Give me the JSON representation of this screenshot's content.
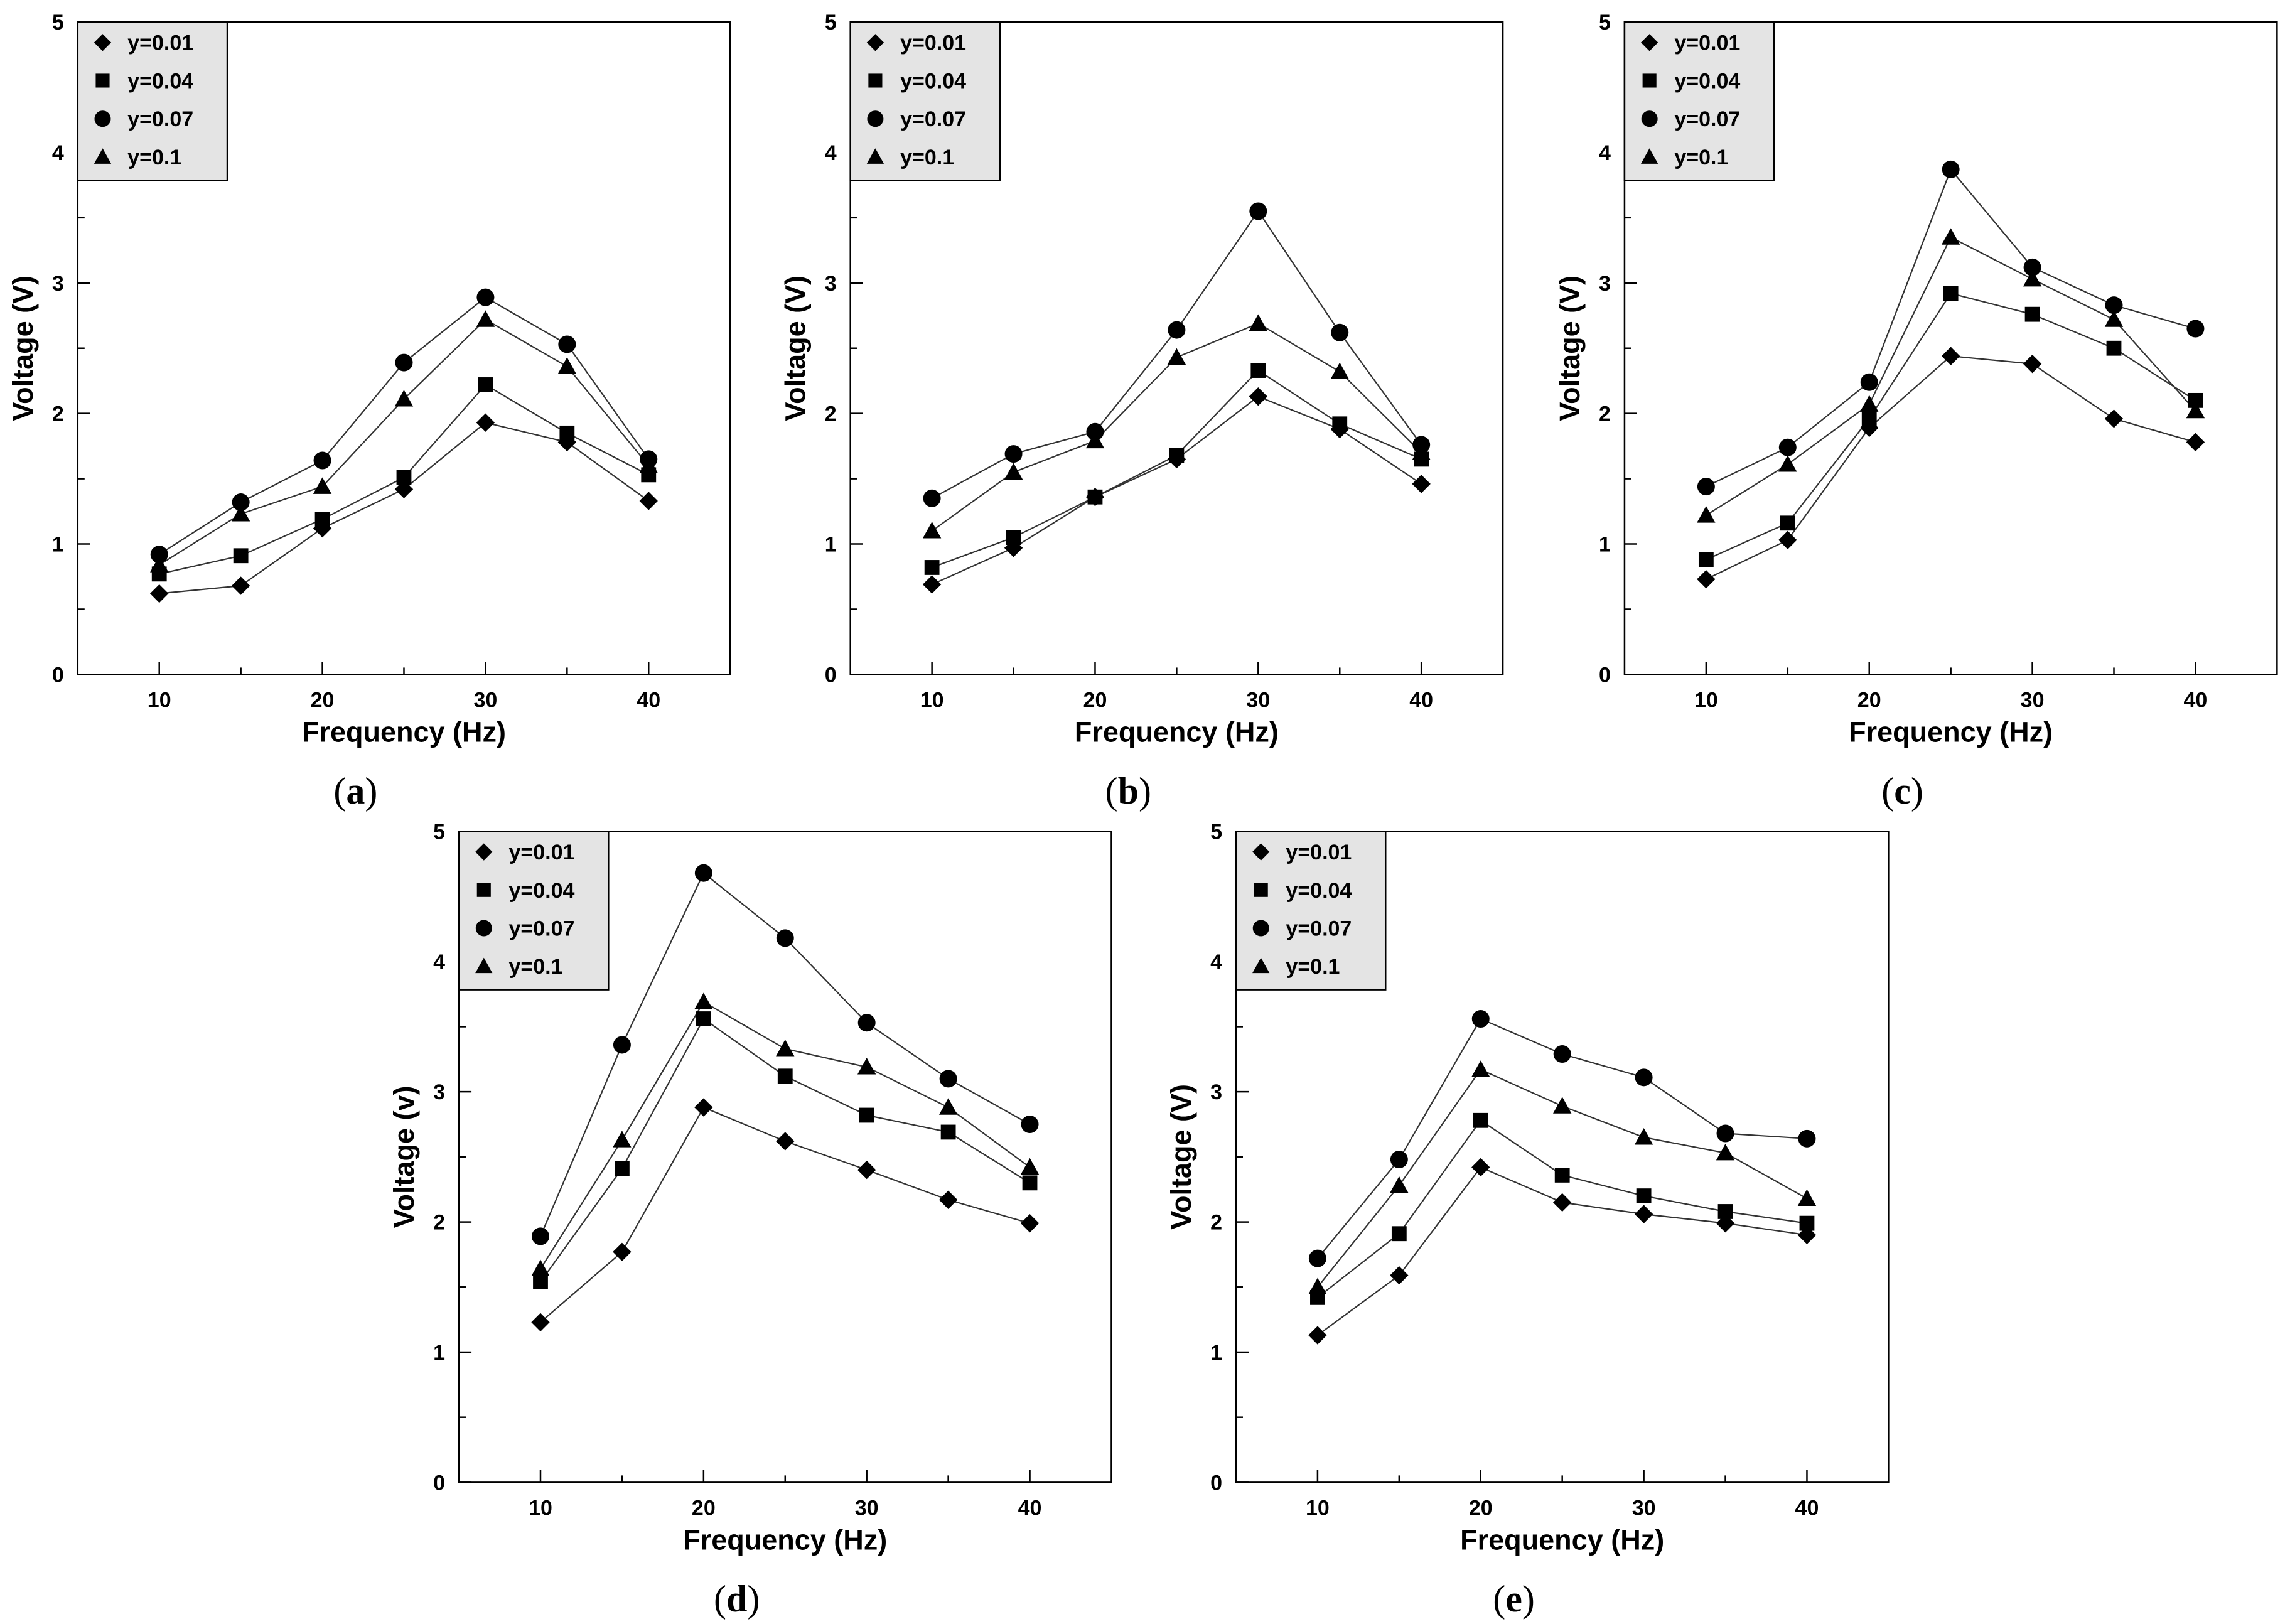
{
  "chart_data": [
    {
      "type": "line",
      "caption_letter": "a",
      "xlabel": "Frequency (Hz)",
      "ylabel": "Voltage (V)",
      "x": [
        10,
        15,
        20,
        25,
        30,
        35,
        40
      ],
      "xticks": [
        10,
        20,
        30,
        40
      ],
      "xlim": [
        5,
        45
      ],
      "yticks": [
        0,
        1,
        2,
        3,
        4,
        5
      ],
      "ylim": [
        0,
        5
      ],
      "legend_position": "top-left",
      "series": [
        {
          "name": "y=0.01",
          "marker": "diamond",
          "values": [
            0.62,
            0.68,
            1.12,
            1.42,
            1.93,
            1.78,
            1.33
          ]
        },
        {
          "name": "y=0.04",
          "marker": "square",
          "values": [
            0.77,
            0.91,
            1.19,
            1.51,
            2.22,
            1.85,
            1.53
          ]
        },
        {
          "name": "y=0.07",
          "marker": "circle",
          "values": [
            0.92,
            1.32,
            1.64,
            2.39,
            2.89,
            2.53,
            1.65
          ]
        },
        {
          "name": "y=0.1",
          "marker": "triangle",
          "values": [
            0.84,
            1.23,
            1.44,
            2.11,
            2.72,
            2.36,
            1.6
          ]
        }
      ]
    },
    {
      "type": "line",
      "caption_letter": "b",
      "xlabel": "Frequency (Hz)",
      "ylabel": "Voltage (V)",
      "x": [
        10,
        15,
        20,
        25,
        30,
        35,
        40
      ],
      "xticks": [
        10,
        20,
        30,
        40
      ],
      "xlim": [
        5,
        45
      ],
      "yticks": [
        0,
        1,
        2,
        3,
        4,
        5
      ],
      "ylim": [
        0,
        5
      ],
      "legend_position": "top-left",
      "series": [
        {
          "name": "y=0.01",
          "marker": "diamond",
          "values": [
            0.69,
            0.97,
            1.36,
            1.65,
            2.13,
            1.88,
            1.46
          ]
        },
        {
          "name": "y=0.04",
          "marker": "square",
          "values": [
            0.82,
            1.05,
            1.36,
            1.68,
            2.33,
            1.92,
            1.65
          ]
        },
        {
          "name": "y=0.07",
          "marker": "circle",
          "values": [
            1.35,
            1.69,
            1.86,
            2.64,
            3.55,
            2.62,
            1.76
          ]
        },
        {
          "name": "y=0.1",
          "marker": "triangle",
          "values": [
            1.1,
            1.55,
            1.79,
            2.43,
            2.69,
            2.32,
            1.7
          ]
        }
      ]
    },
    {
      "type": "line",
      "caption_letter": "c",
      "xlabel": "Frequency (Hz)",
      "ylabel": "Voltage (V)",
      "x": [
        10,
        15,
        20,
        25,
        30,
        35,
        40
      ],
      "xticks": [
        10,
        20,
        30,
        40
      ],
      "xlim": [
        5,
        45
      ],
      "yticks": [
        0,
        1,
        2,
        3,
        4,
        5
      ],
      "ylim": [
        0,
        5
      ],
      "legend_position": "top-left",
      "series": [
        {
          "name": "y=0.01",
          "marker": "diamond",
          "values": [
            0.73,
            1.03,
            1.89,
            2.44,
            2.38,
            1.96,
            1.78
          ]
        },
        {
          "name": "y=0.04",
          "marker": "square",
          "values": [
            0.88,
            1.16,
            1.96,
            2.92,
            2.76,
            2.5,
            2.1
          ]
        },
        {
          "name": "y=0.07",
          "marker": "circle",
          "values": [
            1.44,
            1.74,
            2.24,
            3.87,
            3.12,
            2.83,
            2.65
          ]
        },
        {
          "name": "y=0.1",
          "marker": "triangle",
          "values": [
            1.22,
            1.61,
            2.07,
            3.35,
            3.03,
            2.72,
            2.02
          ]
        }
      ]
    },
    {
      "type": "line",
      "caption_letter": "d",
      "xlabel": "Frequency (Hz)",
      "ylabel": "Voltage (v)",
      "x": [
        10,
        15,
        20,
        25,
        30,
        35,
        40
      ],
      "xticks": [
        10,
        20,
        30,
        40
      ],
      "xlim": [
        5,
        45
      ],
      "yticks": [
        0,
        1,
        2,
        3,
        4,
        5
      ],
      "ylim": [
        0,
        5
      ],
      "legend_position": "top-left",
      "series": [
        {
          "name": "y=0.01",
          "marker": "diamond",
          "values": [
            1.23,
            1.77,
            2.88,
            2.62,
            2.4,
            2.17,
            1.99
          ]
        },
        {
          "name": "y=0.04",
          "marker": "square",
          "values": [
            1.54,
            2.41,
            3.56,
            3.12,
            2.82,
            2.69,
            2.3
          ]
        },
        {
          "name": "y=0.07",
          "marker": "circle",
          "values": [
            1.89,
            3.36,
            4.68,
            4.18,
            3.53,
            3.1,
            2.75
          ]
        },
        {
          "name": "y=0.1",
          "marker": "triangle",
          "values": [
            1.64,
            2.63,
            3.69,
            3.33,
            3.19,
            2.88,
            2.42
          ]
        }
      ]
    },
    {
      "type": "line",
      "caption_letter": "e",
      "xlabel": "Frequency (Hz)",
      "ylabel": "Voltage (V)",
      "x": [
        10,
        15,
        20,
        25,
        30,
        35,
        40
      ],
      "xticks": [
        10,
        20,
        30,
        40
      ],
      "xlim": [
        5,
        45
      ],
      "yticks": [
        0,
        1,
        2,
        3,
        4,
        5
      ],
      "ylim": [
        0,
        5
      ],
      "legend_position": "top-left",
      "series": [
        {
          "name": "y=0.01",
          "marker": "diamond",
          "values": [
            1.13,
            1.59,
            2.42,
            2.15,
            2.06,
            1.99,
            1.9
          ]
        },
        {
          "name": "y=0.04",
          "marker": "square",
          "values": [
            1.42,
            1.91,
            2.78,
            2.36,
            2.2,
            2.08,
            1.99
          ]
        },
        {
          "name": "y=0.07",
          "marker": "circle",
          "values": [
            1.72,
            2.48,
            3.56,
            3.29,
            3.11,
            2.68,
            2.64
          ]
        },
        {
          "name": "y=0.1",
          "marker": "triangle",
          "values": [
            1.5,
            2.28,
            3.17,
            2.89,
            2.65,
            2.53,
            2.18
          ]
        }
      ]
    }
  ]
}
